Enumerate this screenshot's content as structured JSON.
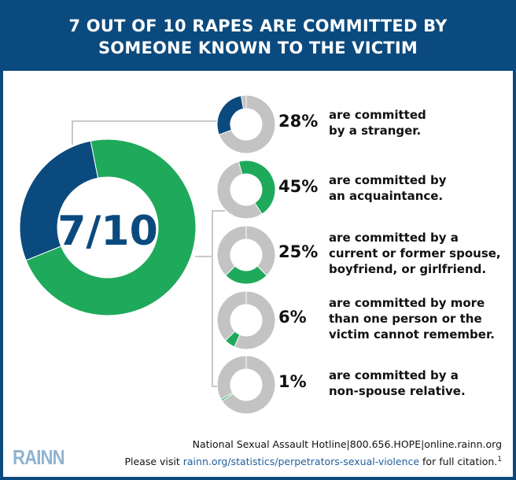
{
  "header": {
    "title_line1": "7 OUT OF 10 RAPES ARE COMMITTED BY",
    "title_line2": "SOMEONE KNOWN TO THE VICTIM"
  },
  "colors": {
    "brand_blue": "#0b4a7e",
    "green": "#1fa95a",
    "gray": "#c4c3c3"
  },
  "chart_data": [
    {
      "type": "pie",
      "variant": "donut",
      "center_label": "7/10",
      "slices": [
        {
          "value": 28,
          "color": "#0b4a7e"
        },
        {
          "value": 72,
          "color": "#1fa95a"
        }
      ]
    },
    {
      "type": "pie",
      "variant": "donut-series",
      "items": [
        {
          "value": 28,
          "label": "28%",
          "desc": [
            "are committed",
            "by a stranger."
          ],
          "color": "#0b4a7e"
        },
        {
          "value": 45,
          "label": "45%",
          "desc": [
            "are committed by",
            "an acquaintance."
          ],
          "color": "#1fa95a"
        },
        {
          "value": 25,
          "label": "25%",
          "desc": [
            "are committed by a",
            "current or former spouse,",
            "boyfriend, or girlfriend."
          ],
          "color": "#1fa95a"
        },
        {
          "value": 6,
          "label": "6%",
          "desc": [
            "are committed by more",
            "than one person or the",
            "victim cannot remember."
          ],
          "color": "#1fa95a"
        },
        {
          "value": 1,
          "label": "1%",
          "desc": [
            "are committed by a",
            "non-spouse relative."
          ],
          "color": "#1fa95a"
        }
      ]
    }
  ],
  "footer": {
    "logo": "RAINN",
    "hotline": "National Sexual Assault Hotline|800.656.HOPE|online.rainn.org",
    "visit_prefix": "Please visit ",
    "visit_link": "rainn.org/statistics/perpetrators-sexual-violence",
    "visit_suffix": " for full citation.",
    "footnote": "1"
  }
}
